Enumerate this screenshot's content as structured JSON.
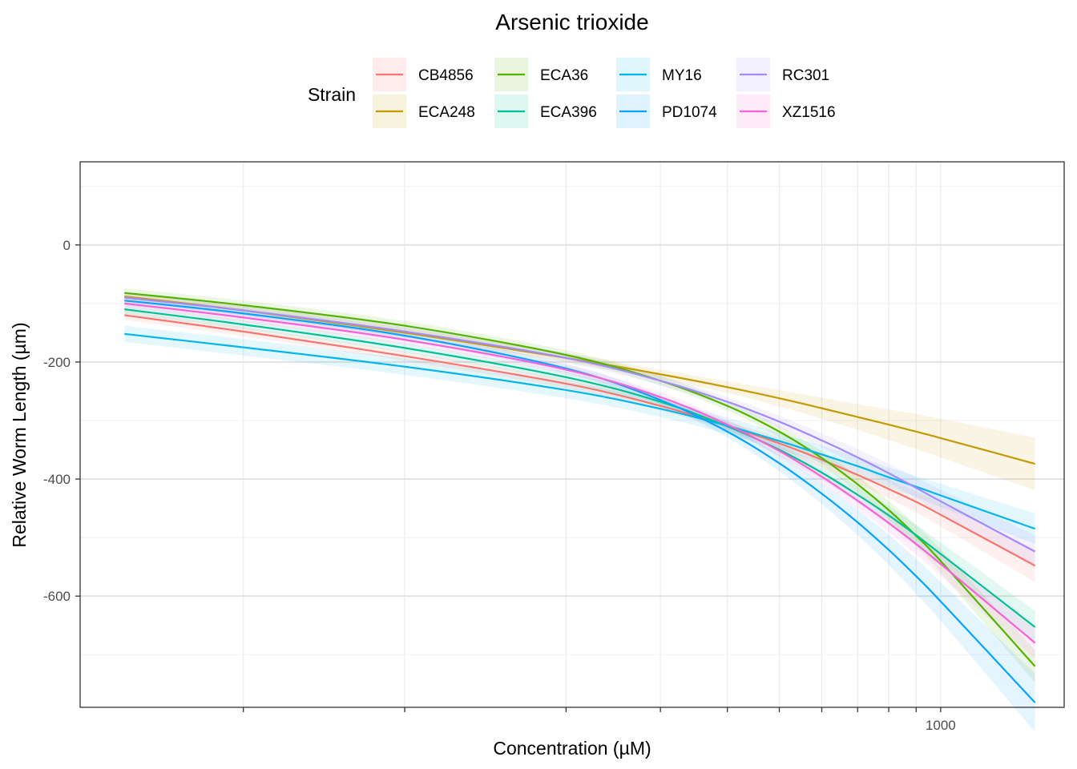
{
  "chart_data": {
    "type": "line",
    "title": "Arsenic trioxide",
    "xlabel": "Concentration (µM)",
    "ylabel": "Relative Worm Length (µm)",
    "x_scale": "log10",
    "xlim": [
      24.8,
      1700
    ],
    "ylim": [
      -790,
      142
    ],
    "x_ticks": [
      1000
    ],
    "x_tick_labels": [
      "1000"
    ],
    "y_ticks": [
      0,
      -200,
      -400,
      -600
    ],
    "y_tick_labels": [
      "0",
      "-200",
      "-400",
      "-600"
    ],
    "x_minor_grid": [
      50,
      100,
      200,
      300,
      400,
      500,
      600,
      700,
      800,
      900,
      1000
    ],
    "y_minor_grid": [
      100,
      -100,
      -300,
      -500,
      -700
    ],
    "grid": true,
    "legend": {
      "title": "Strain",
      "position": "top"
    },
    "series": [
      {
        "name": "CB4856",
        "color": "#F8766D",
        "x": [
          30,
          50,
          100,
          200,
          300,
          400,
          500,
          600,
          700,
          800,
          900,
          1000,
          1500
        ],
        "y": [
          -120,
          -148,
          -190,
          -237,
          -275,
          -309,
          -339,
          -367,
          -393,
          -417,
          -439,
          -461,
          -548
        ],
        "ci": [
          8,
          8,
          8,
          8,
          8,
          8,
          10,
          12,
          14,
          16,
          18,
          20,
          28
        ]
      },
      {
        "name": "ECA248",
        "color": "#C49A00",
        "x": [
          30,
          50,
          100,
          200,
          300,
          400,
          500,
          600,
          700,
          800,
          900,
          1000,
          1500
        ],
        "y": [
          -88,
          -112,
          -150,
          -193,
          -221,
          -243,
          -262,
          -279,
          -294,
          -307,
          -319,
          -330,
          -374
        ],
        "ci": [
          8,
          8,
          8,
          8,
          8,
          10,
          14,
          18,
          22,
          26,
          30,
          33,
          45
        ]
      },
      {
        "name": "ECA36",
        "color": "#53B400",
        "x": [
          30,
          50,
          100,
          200,
          300,
          400,
          500,
          600,
          700,
          800,
          900,
          1000,
          1500
        ],
        "y": [
          -82,
          -103,
          -138,
          -188,
          -232,
          -275,
          -319,
          -364,
          -409,
          -453,
          -497,
          -540,
          -720
        ],
        "ci": [
          8,
          8,
          8,
          8,
          8,
          8,
          10,
          12,
          14,
          16,
          18,
          20,
          28
        ]
      },
      {
        "name": "ECA396",
        "color": "#00C094",
        "x": [
          30,
          50,
          100,
          200,
          300,
          400,
          500,
          600,
          700,
          800,
          900,
          1000,
          1500
        ],
        "y": [
          -110,
          -136,
          -176,
          -226,
          -268,
          -310,
          -350,
          -389,
          -427,
          -462,
          -496,
          -528,
          -653
        ],
        "ci": [
          8,
          8,
          8,
          8,
          8,
          8,
          10,
          12,
          14,
          16,
          18,
          20,
          28
        ]
      },
      {
        "name": "MY16",
        "color": "#00B6EB",
        "x": [
          30,
          50,
          100,
          200,
          300,
          400,
          500,
          600,
          700,
          800,
          900,
          1000,
          1500
        ],
        "y": [
          -152,
          -175,
          -208,
          -248,
          -280,
          -309,
          -335,
          -358,
          -378,
          -397,
          -413,
          -428,
          -485
        ],
        "ci": [
          14,
          14,
          14,
          14,
          14,
          14,
          14,
          15,
          16,
          17,
          18,
          20,
          26
        ]
      },
      {
        "name": "PD1074",
        "color": "#06A4FF",
        "x": [
          30,
          50,
          100,
          200,
          300,
          400,
          500,
          600,
          700,
          800,
          900,
          1000,
          1500
        ],
        "y": [
          -95,
          -117,
          -155,
          -211,
          -265,
          -319,
          -373,
          -425,
          -474,
          -521,
          -566,
          -609,
          -782
        ],
        "ci": [
          8,
          8,
          8,
          8,
          8,
          10,
          14,
          18,
          22,
          26,
          30,
          33,
          50
        ]
      },
      {
        "name": "RC301",
        "color": "#A58AFF",
        "x": [
          30,
          50,
          100,
          200,
          300,
          400,
          500,
          600,
          700,
          800,
          900,
          1000,
          1500
        ],
        "y": [
          -90,
          -112,
          -148,
          -193,
          -232,
          -268,
          -302,
          -334,
          -363,
          -390,
          -415,
          -438,
          -524
        ],
        "ci": [
          8,
          8,
          8,
          8,
          8,
          8,
          10,
          12,
          14,
          16,
          18,
          20,
          28
        ]
      },
      {
        "name": "XZ1516",
        "color": "#FB61D7",
        "x": [
          30,
          50,
          100,
          200,
          300,
          400,
          500,
          600,
          700,
          800,
          900,
          1000,
          1500
        ],
        "y": [
          -100,
          -124,
          -162,
          -213,
          -260,
          -307,
          -352,
          -396,
          -437,
          -475,
          -511,
          -545,
          -680
        ],
        "ci": [
          8,
          8,
          8,
          8,
          8,
          8,
          10,
          12,
          14,
          16,
          18,
          20,
          28
        ]
      }
    ]
  }
}
